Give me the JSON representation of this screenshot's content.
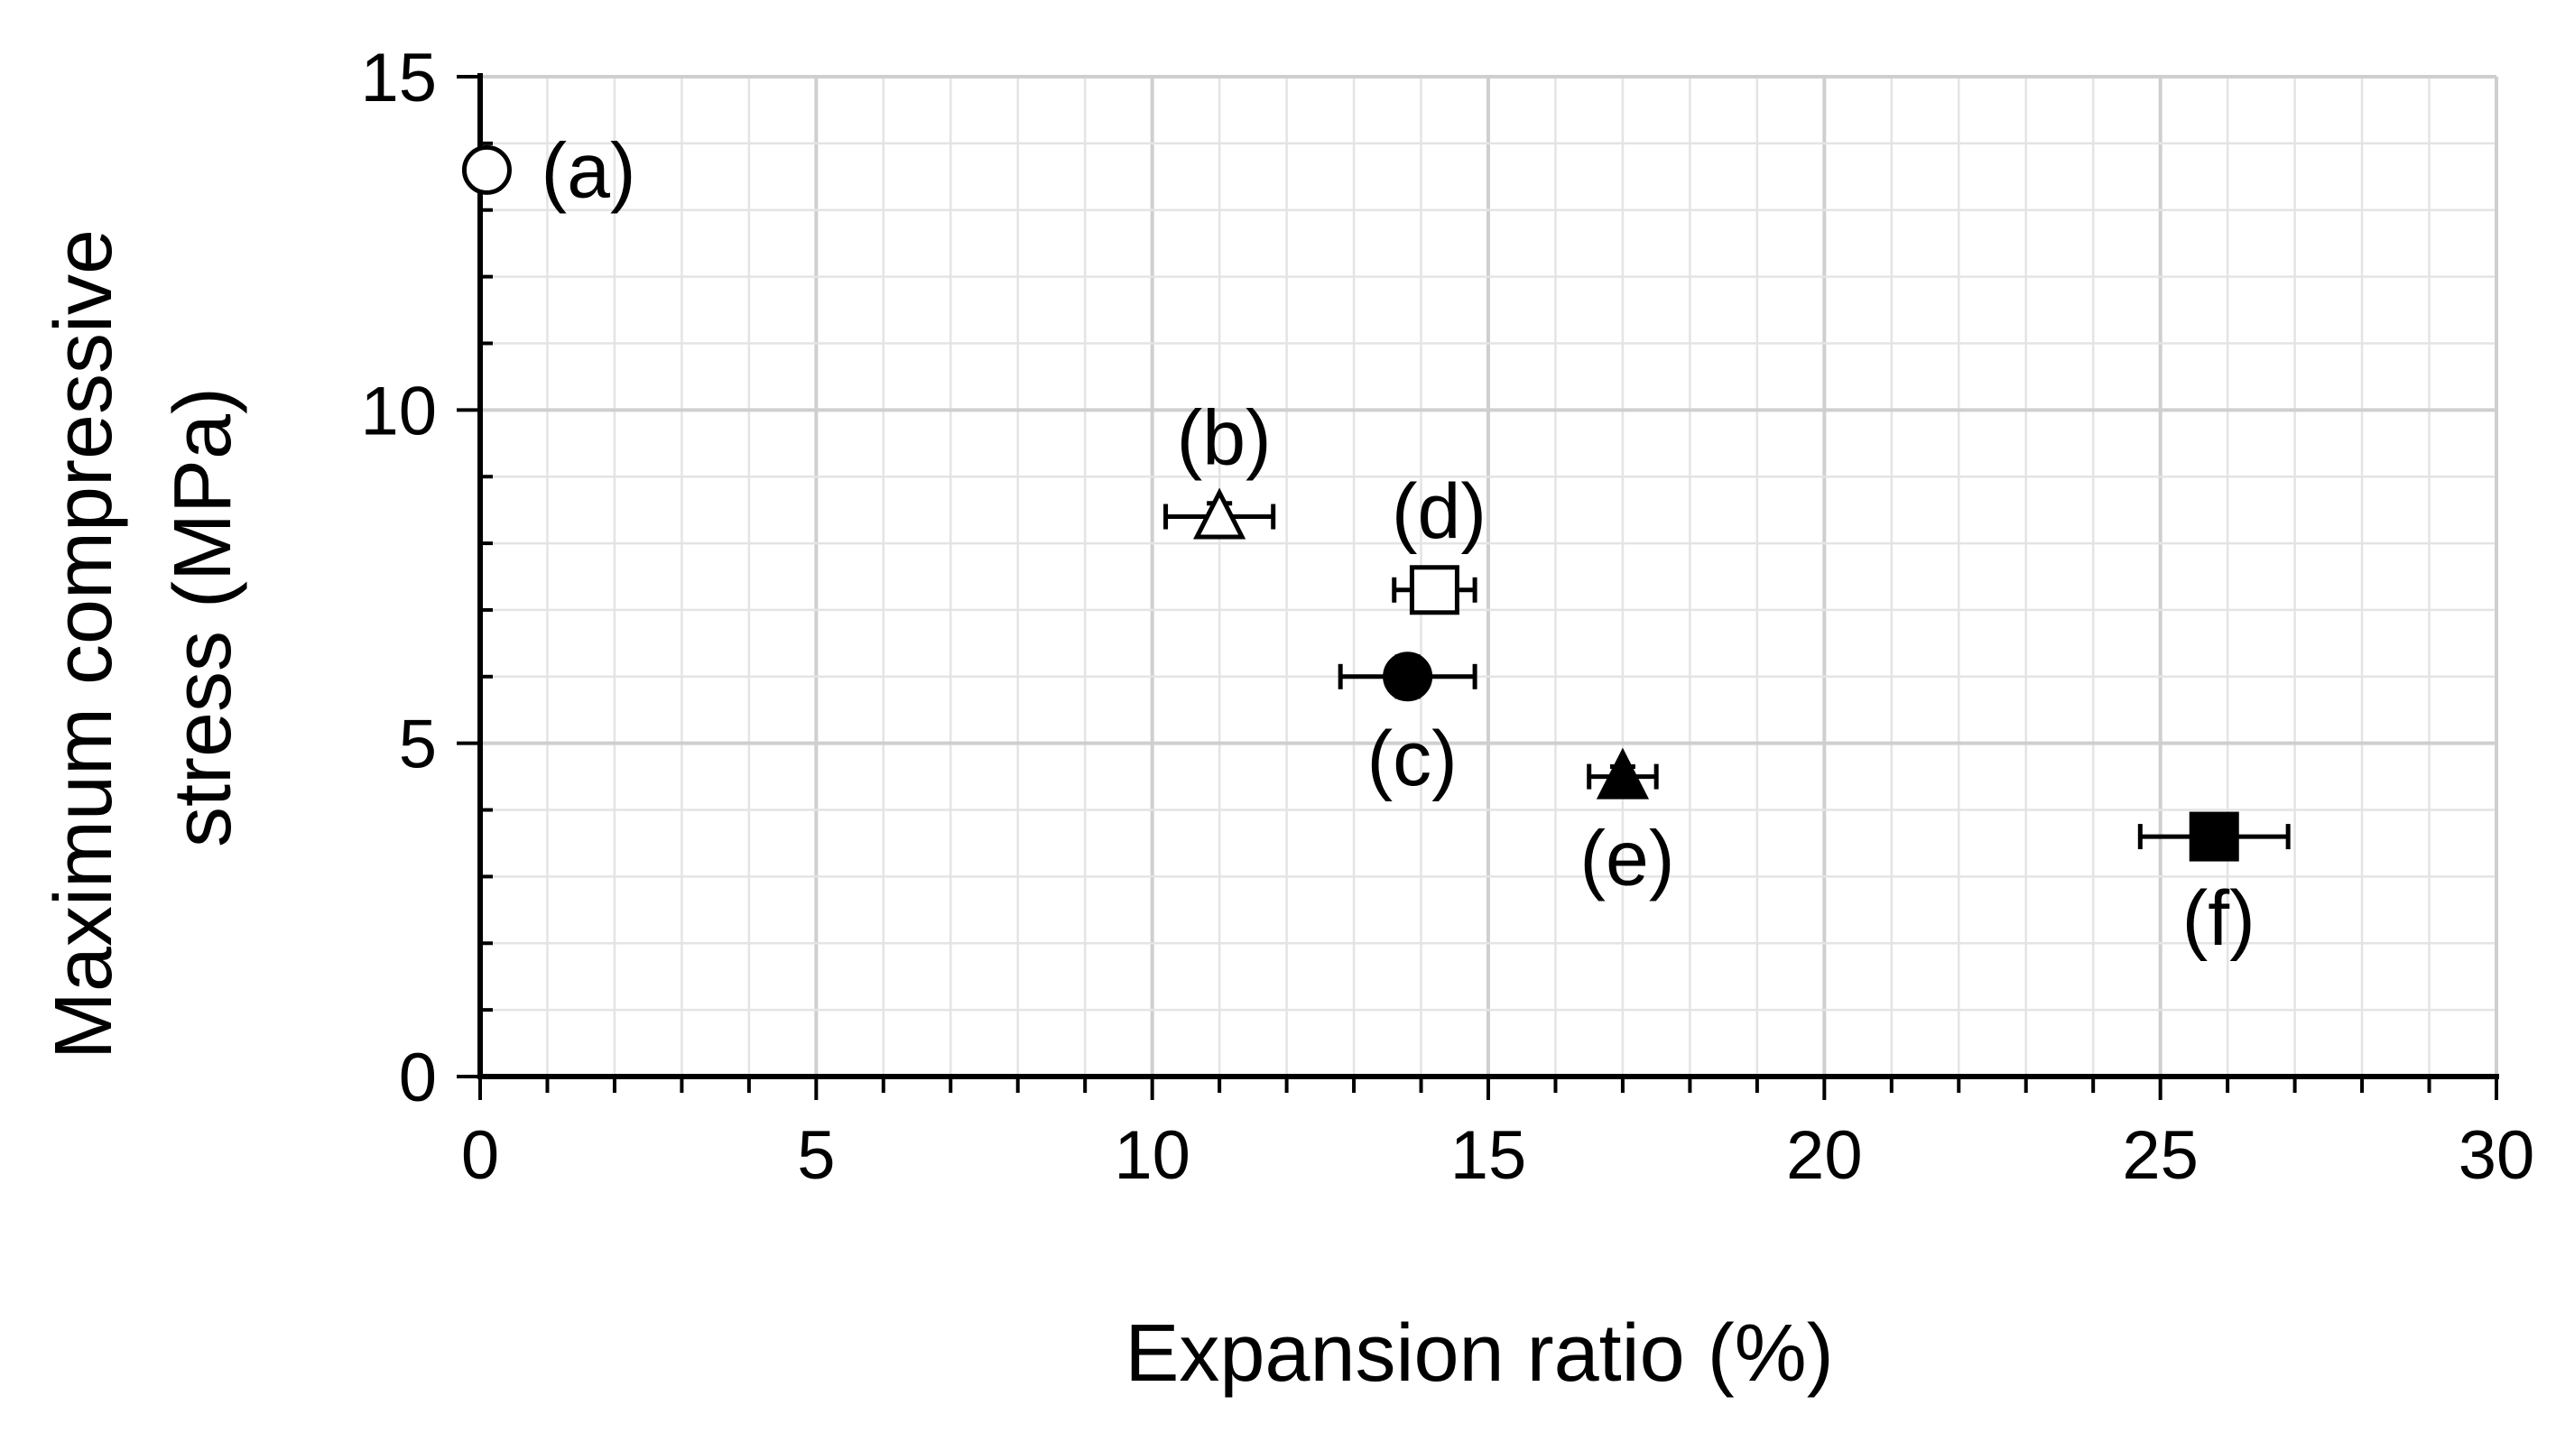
{
  "chart_data": {
    "type": "scatter",
    "title": "",
    "xlabel": "Expansion ratio (%)",
    "ylabel_lines": [
      "Maximum compressive",
      "stress (MPa)"
    ],
    "xlim": [
      0,
      30
    ],
    "ylim": [
      0,
      15
    ],
    "x_ticks": [
      0,
      5,
      10,
      15,
      20,
      25,
      30
    ],
    "y_ticks": [
      0,
      5,
      10,
      15
    ],
    "grid": true,
    "legend": "none",
    "points": [
      {
        "label": "(a)",
        "x": 0.1,
        "y": 13.6,
        "x_err": 0,
        "y_err": 0,
        "marker": "circle",
        "fill": "open",
        "label_position": "right"
      },
      {
        "label": "(b)",
        "x": 11.0,
        "y": 8.4,
        "x_err": 0.8,
        "y_err": 0.2,
        "marker": "triangle",
        "fill": "open",
        "label_position": "above"
      },
      {
        "label": "(c)",
        "x": 13.8,
        "y": 6.0,
        "x_err": 1.0,
        "y_err": 0.3,
        "marker": "circle",
        "fill": "filled",
        "label_position": "below"
      },
      {
        "label": "(d)",
        "x": 14.2,
        "y": 7.3,
        "x_err": 0.6,
        "y_err": 0.2,
        "marker": "square",
        "fill": "open",
        "label_position": "above"
      },
      {
        "label": "(e)",
        "x": 17.0,
        "y": 4.5,
        "x_err": 0.5,
        "y_err": 0.15,
        "marker": "triangle",
        "fill": "filled",
        "label_position": "below"
      },
      {
        "label": "(f)",
        "x": 25.8,
        "y": 3.6,
        "x_err": 1.1,
        "y_err": 0.1,
        "marker": "square",
        "fill": "filled",
        "label_position": "below"
      }
    ]
  }
}
